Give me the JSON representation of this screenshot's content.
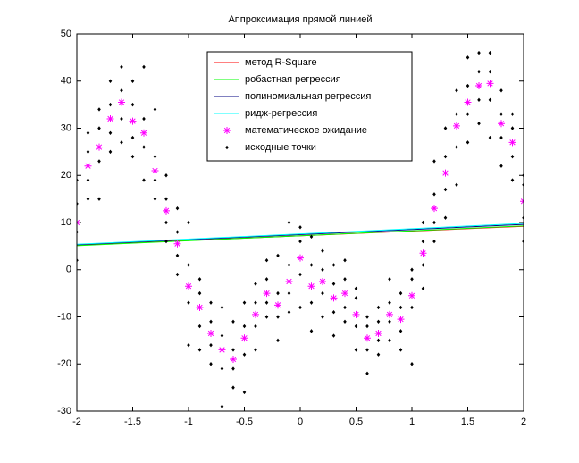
{
  "chart_data": {
    "type": "line",
    "title": "Аппроксимация прямой линией",
    "xlim": [
      -2,
      2
    ],
    "ylim": [
      -30,
      50
    ],
    "xticks": [
      -2,
      -1.5,
      -1,
      -0.5,
      0,
      0.5,
      1,
      1.5,
      2
    ],
    "yticks": [
      -30,
      -20,
      -10,
      0,
      10,
      20,
      30,
      40,
      50
    ],
    "grid": false,
    "legend": "top",
    "series": [
      {
        "name": "метод R-Square",
        "color": "#ff0000",
        "style": "line",
        "x": [
          -2,
          2
        ],
        "values": [
          5.2,
          9.2
        ]
      },
      {
        "name": "робастная регрессия",
        "color": "#00ff00",
        "style": "line",
        "x": [
          -2,
          2
        ],
        "values": [
          5.1,
          9.3
        ]
      },
      {
        "name": "полиномиальная регрессия",
        "color": "#000080",
        "style": "line",
        "x": [
          -2,
          2
        ],
        "values": [
          5.3,
          9.6
        ]
      },
      {
        "name": "ридж-регрессия",
        "color": "#00ffff",
        "style": "line",
        "x": [
          -2,
          2
        ],
        "values": [
          5.4,
          9.8
        ]
      },
      {
        "name": "математическое ожидание",
        "color": "#ff00ff",
        "style": "asterisk",
        "x": [
          -2,
          -1.9,
          -1.8,
          -1.7,
          -1.6,
          -1.5,
          -1.4,
          -1.3,
          -1.2,
          -1.1,
          -1,
          -0.9,
          -0.8,
          -0.7,
          -0.6,
          -0.5,
          -0.4,
          -0.3,
          -0.2,
          -0.1,
          0,
          0.1,
          0.2,
          0.3,
          0.4,
          0.5,
          0.6,
          0.7,
          0.8,
          0.9,
          1,
          1.1,
          1.2,
          1.3,
          1.4,
          1.5,
          1.6,
          1.7,
          1.8,
          1.9,
          2
        ],
        "values": [
          10,
          22,
          26,
          32,
          35.5,
          31.5,
          29,
          21,
          12.5,
          5.5,
          -3.5,
          -8,
          -13.5,
          -17,
          -19,
          -14.5,
          -9.5,
          -5,
          -7.5,
          -2.5,
          2.5,
          -3.5,
          -2.5,
          -6,
          -5,
          -9.5,
          -14.5,
          -13.5,
          -9.5,
          -10.5,
          -5.5,
          3.5,
          13,
          20.5,
          30.5,
          35.5,
          39,
          39.5,
          31,
          27,
          14.5
        ]
      },
      {
        "name": "исходные точки",
        "color": "#000000",
        "style": "dot",
        "x": [
          -2,
          -2,
          -2,
          -2,
          -1.9,
          -1.9,
          -1.9,
          -1.9,
          -1.8,
          -1.8,
          -1.8,
          -1.8,
          -1.7,
          -1.7,
          -1.7,
          -1.7,
          -1.6,
          -1.6,
          -1.6,
          -1.6,
          -1.5,
          -1.5,
          -1.5,
          -1.5,
          -1.4,
          -1.4,
          -1.4,
          -1.4,
          -1.3,
          -1.3,
          -1.3,
          -1.3,
          -1.2,
          -1.2,
          -1.2,
          -1.2,
          -1.1,
          -1.1,
          -1.1,
          -1.1,
          -1,
          -1,
          -1,
          -1,
          -0.9,
          -0.9,
          -0.9,
          -0.9,
          -0.8,
          -0.8,
          -0.8,
          -0.8,
          -0.7,
          -0.7,
          -0.7,
          -0.7,
          -0.6,
          -0.6,
          -0.6,
          -0.6,
          -0.5,
          -0.5,
          -0.5,
          -0.5,
          -0.4,
          -0.4,
          -0.4,
          -0.4,
          -0.3,
          -0.3,
          -0.3,
          -0.3,
          -0.2,
          -0.2,
          -0.2,
          -0.2,
          -0.1,
          -0.1,
          -0.1,
          -0.1,
          0,
          0,
          0,
          0,
          0.1,
          0.1,
          0.1,
          0.1,
          0.2,
          0.2,
          0.2,
          0.2,
          0.3,
          0.3,
          0.3,
          0.3,
          0.4,
          0.4,
          0.4,
          0.4,
          0.5,
          0.5,
          0.5,
          0.5,
          0.6,
          0.6,
          0.6,
          0.6,
          0.7,
          0.7,
          0.7,
          0.7,
          0.8,
          0.8,
          0.8,
          0.8,
          0.9,
          0.9,
          0.9,
          0.9,
          1,
          1,
          1,
          1,
          1.1,
          1.1,
          1.1,
          1.1,
          1.2,
          1.2,
          1.2,
          1.2,
          1.3,
          1.3,
          1.3,
          1.3,
          1.4,
          1.4,
          1.4,
          1.4,
          1.5,
          1.5,
          1.5,
          1.5,
          1.6,
          1.6,
          1.6,
          1.6,
          1.7,
          1.7,
          1.7,
          1.7,
          1.8,
          1.8,
          1.8,
          1.8,
          1.9,
          1.9,
          1.9,
          1.9,
          2,
          2,
          2,
          2
        ],
        "values": [
          2,
          8,
          14,
          19,
          15,
          19,
          25,
          29,
          15,
          23,
          30,
          34,
          25,
          29,
          35,
          40,
          27,
          32,
          38,
          43,
          24,
          28,
          35,
          40,
          19,
          26,
          32,
          43,
          15,
          19,
          24,
          34,
          6,
          10,
          15,
          20,
          -1,
          3,
          8,
          13,
          -16,
          -7,
          1,
          10,
          -17,
          -12,
          -5,
          -2,
          -20,
          -16,
          -11,
          -7,
          -29,
          -21,
          -14,
          -8,
          -25,
          -21,
          -17,
          -11,
          -26,
          -18,
          -12,
          -7,
          -17,
          -12,
          -7,
          -3,
          -10,
          -7,
          -2,
          2,
          -15,
          -10,
          -5,
          3,
          -9,
          -5,
          1,
          10,
          -8,
          -1,
          6,
          9,
          -13,
          -7,
          1,
          7,
          -10,
          -5,
          0,
          4,
          -14,
          -9,
          -3,
          1,
          -11,
          -8,
          -2,
          2,
          -17,
          -12,
          -6,
          -4,
          -22,
          -17,
          -12,
          -10,
          -18,
          -15,
          -11,
          -8,
          -15,
          -11,
          -7,
          -2,
          -17,
          -13,
          -8,
          -5,
          -20,
          -8,
          -2,
          0,
          -4,
          1,
          6,
          10,
          6,
          10,
          16,
          23,
          11,
          17,
          24,
          30,
          18,
          26,
          33,
          38,
          27,
          33,
          39,
          45,
          31,
          36,
          42,
          46,
          28,
          36,
          42,
          46,
          22,
          28,
          33,
          38,
          19,
          24,
          30,
          33,
          6,
          11,
          18,
          20
        ]
      }
    ]
  }
}
